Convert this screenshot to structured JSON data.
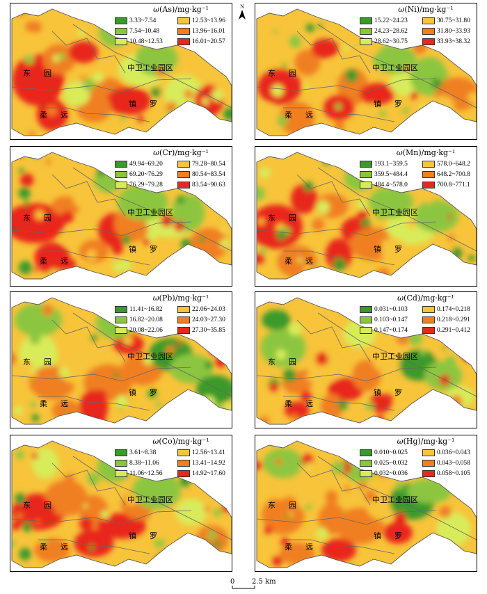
{
  "north_label": "N",
  "scale": {
    "zero": "0",
    "distance": "2.5 km"
  },
  "places": {
    "dongyuan_a": "东",
    "dongyuan_b": "园",
    "zone": "中卫工业园区",
    "rouyuan_a": "柔",
    "rouyuan_b": "远",
    "zhenluo_a": "镇",
    "zhenluo_b": "罗"
  },
  "panels": [
    {
      "id": "as",
      "symbol": "ω",
      "element": "(As)",
      "unit": "/mg·kg⁻¹",
      "classes": [
        {
          "label": "3.33~7.54",
          "color": "#3a9a2a"
        },
        {
          "label": "7.54~10.48",
          "color": "#8cc63f"
        },
        {
          "label": "10.48~12.53",
          "color": "#d8ec5a"
        },
        {
          "label": "12.53~13.96",
          "color": "#f7c43a"
        },
        {
          "label": "13.96~16.01",
          "color": "#f07f22"
        },
        {
          "label": "16.01~20.57",
          "color": "#e8281e"
        }
      ]
    },
    {
      "id": "ni",
      "symbol": "ω",
      "element": "(Ni)",
      "unit": "/mg·kg⁻¹",
      "classes": [
        {
          "label": "15.22~24.23",
          "color": "#3a9a2a"
        },
        {
          "label": "24.23~28.62",
          "color": "#8cc63f"
        },
        {
          "label": "28.62~30.75",
          "color": "#d8ec5a"
        },
        {
          "label": "30.75~31.80",
          "color": "#f7c43a"
        },
        {
          "label": "31.80~33.93",
          "color": "#f07f22"
        },
        {
          "label": "33.93~38.32",
          "color": "#e8281e"
        }
      ]
    },
    {
      "id": "cr",
      "symbol": "ω",
      "element": "(Cr)",
      "unit": "/mg·kg⁻¹",
      "classes": [
        {
          "label": "49.94~69.20",
          "color": "#3a9a2a"
        },
        {
          "label": "69.20~76.29",
          "color": "#8cc63f"
        },
        {
          "label": "76.29~79.28",
          "color": "#d8ec5a"
        },
        {
          "label": "79.28~80.54",
          "color": "#f7c43a"
        },
        {
          "label": "80.54~83.54",
          "color": "#f07f22"
        },
        {
          "label": "83.54~90.63",
          "color": "#e8281e"
        }
      ]
    },
    {
      "id": "mn",
      "symbol": "ω",
      "element": "(Mn)",
      "unit": "/mg·kg⁻¹",
      "classes": [
        {
          "label": "193.1~359.5",
          "color": "#3a9a2a"
        },
        {
          "label": "359.5~484.4",
          "color": "#8cc63f"
        },
        {
          "label": "484.4~578.0",
          "color": "#d8ec5a"
        },
        {
          "label": "578.0~648.2",
          "color": "#f7c43a"
        },
        {
          "label": "648.2~700.8",
          "color": "#f07f22"
        },
        {
          "label": "700.8~771.1",
          "color": "#e8281e"
        }
      ]
    },
    {
      "id": "pb",
      "symbol": "ω",
      "element": "(Pb)",
      "unit": "/mg·kg⁻¹",
      "classes": [
        {
          "label": "11.41~16.82",
          "color": "#3a9a2a"
        },
        {
          "label": "16.82~20.08",
          "color": "#8cc63f"
        },
        {
          "label": "20.08~22.06",
          "color": "#d8ec5a"
        },
        {
          "label": "22.06~24.03",
          "color": "#f7c43a"
        },
        {
          "label": "24.03~27.30",
          "color": "#f07f22"
        },
        {
          "label": "27.30~35.85",
          "color": "#e8281e"
        }
      ]
    },
    {
      "id": "cd",
      "symbol": "ω",
      "element": "(Cd)",
      "unit": "/mg·kg⁻¹",
      "classes": [
        {
          "label": "0.031~0.103",
          "color": "#3a9a2a"
        },
        {
          "label": "0.103~0.147",
          "color": "#8cc63f"
        },
        {
          "label": "0.147~0.174",
          "color": "#d8ec5a"
        },
        {
          "label": "0.174~0.218",
          "color": "#f7c43a"
        },
        {
          "label": "0.218~0.291",
          "color": "#f07f22"
        },
        {
          "label": "0.291~0.412",
          "color": "#e8281e"
        }
      ]
    },
    {
      "id": "co",
      "symbol": "ω",
      "element": "(Co)",
      "unit": "/mg·kg⁻¹",
      "classes": [
        {
          "label": "3.61~8.38",
          "color": "#3a9a2a"
        },
        {
          "label": "8.38~11.06",
          "color": "#8cc63f"
        },
        {
          "label": "11.06~12.56",
          "color": "#d8ec5a"
        },
        {
          "label": "12.56~13.41",
          "color": "#f7c43a"
        },
        {
          "label": "13.41~14.92",
          "color": "#f07f22"
        },
        {
          "label": "14.92~17.60",
          "color": "#e8281e"
        }
      ]
    },
    {
      "id": "hg",
      "symbol": "ω",
      "element": "(Hg)",
      "unit": "/mg·kg⁻¹",
      "classes": [
        {
          "label": "0.010~0.025",
          "color": "#3a9a2a"
        },
        {
          "label": "0.025~0.032",
          "color": "#8cc63f"
        },
        {
          "label": "0.032~0.036",
          "color": "#d8ec5a"
        },
        {
          "label": "0.036~0.043",
          "color": "#f7c43a"
        },
        {
          "label": "0.043~0.058",
          "color": "#f07f22"
        },
        {
          "label": "0.058~0.105",
          "color": "#e8281e"
        }
      ]
    }
  ]
}
